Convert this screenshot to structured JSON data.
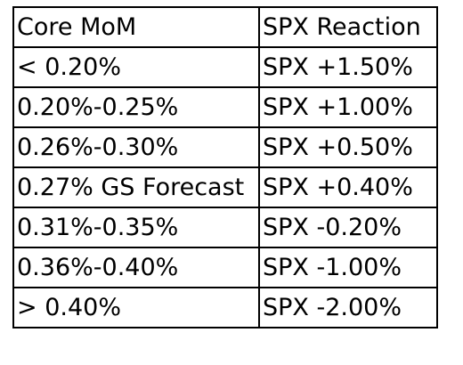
{
  "table": {
    "headers": [
      "Core MoM",
      "SPX Reaction"
    ],
    "rows": [
      [
        "< 0.20%",
        "SPX +1.50%"
      ],
      [
        "0.20%-0.25%",
        "SPX +1.00%"
      ],
      [
        "0.26%-0.30%",
        "SPX +0.50%"
      ],
      [
        "0.27% GS Forecast",
        "SPX +0.40%"
      ],
      [
        "0.31%-0.35%",
        "SPX -0.20%"
      ],
      [
        "0.36%-0.40%",
        "SPX -1.00%"
      ],
      [
        "> 0.40%",
        "SPX -2.00%"
      ]
    ]
  },
  "colors": {
    "text": "#000000",
    "border": "#000000",
    "background": "#ffffff"
  }
}
